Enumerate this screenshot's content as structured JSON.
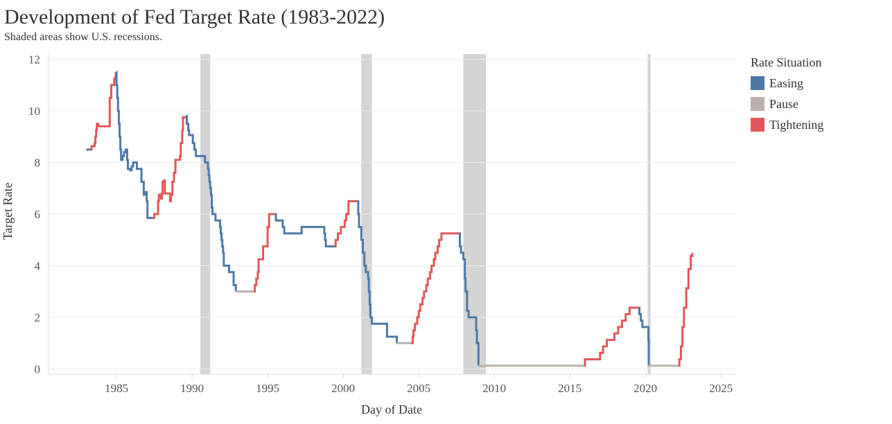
{
  "chart_data": {
    "type": "line",
    "title": "Development of Fed Target Rate (1983-2022)",
    "subtitle": "Shaded areas show U.S. recessions.",
    "xlabel": "Day of Date",
    "ylabel": "Target Rate",
    "xlim": [
      1980.5,
      2026
    ],
    "ylim": [
      -0.2,
      12.2
    ],
    "xticks": [
      1985,
      1990,
      1995,
      2000,
      2005,
      2010,
      2015,
      2020,
      2025
    ],
    "yticks": [
      0,
      2,
      4,
      6,
      8,
      10,
      12
    ],
    "grid": true,
    "legend": {
      "title": "Rate Situation",
      "position": "right",
      "items": [
        {
          "name": "Easing",
          "color": "#4e79a7"
        },
        {
          "name": "Pause",
          "color": "#bab0ac"
        },
        {
          "name": "Tightening",
          "color": "#e15759"
        }
      ]
    },
    "recessions": [
      [
        1990.55,
        1991.2
      ],
      [
        2001.2,
        2001.9
      ],
      [
        2007.95,
        2009.45
      ],
      [
        2020.15,
        2020.35
      ]
    ],
    "series": [
      {
        "name": "Easing",
        "color": "#4e79a7",
        "points": [
          [
            1983.0,
            8.5
          ],
          [
            1983.3,
            8.5
          ]
        ]
      },
      {
        "name": "Tightening",
        "color": "#e15759",
        "points": [
          [
            1983.3,
            8.5
          ],
          [
            1983.35,
            8.63
          ],
          [
            1983.55,
            8.75
          ],
          [
            1983.6,
            9.0
          ],
          [
            1983.65,
            9.25
          ],
          [
            1983.7,
            9.5
          ],
          [
            1983.75,
            9.5
          ],
          [
            1983.78,
            9.4
          ],
          [
            1984.5,
            9.4
          ],
          [
            1984.55,
            10.5
          ],
          [
            1984.65,
            11.0
          ],
          [
            1984.85,
            11.25
          ],
          [
            1984.95,
            11.5
          ]
        ]
      },
      {
        "name": "Easing",
        "color": "#4e79a7",
        "points": [
          [
            1984.95,
            11.5
          ],
          [
            1985.0,
            11.0
          ],
          [
            1985.05,
            10.5
          ],
          [
            1985.1,
            10.0
          ],
          [
            1985.15,
            9.5
          ],
          [
            1985.2,
            9.0
          ],
          [
            1985.25,
            8.5
          ],
          [
            1985.3,
            8.1
          ],
          [
            1985.4,
            8.25
          ],
          [
            1985.5,
            8.4
          ],
          [
            1985.6,
            8.5
          ],
          [
            1985.7,
            8.1
          ],
          [
            1985.75,
            7.75
          ],
          [
            1985.9,
            7.7
          ],
          [
            1986.0,
            7.85
          ],
          [
            1986.1,
            8.0
          ],
          [
            1986.35,
            7.75
          ],
          [
            1986.6,
            7.75
          ],
          [
            1986.65,
            7.25
          ],
          [
            1986.75,
            7.25
          ],
          [
            1986.8,
            6.75
          ],
          [
            1986.9,
            6.85
          ],
          [
            1987.0,
            6.5
          ],
          [
            1987.05,
            5.85
          ],
          [
            1987.45,
            5.85
          ]
        ]
      },
      {
        "name": "Tightening",
        "color": "#e15759",
        "points": [
          [
            1987.45,
            5.85
          ],
          [
            1987.5,
            6.0
          ],
          [
            1987.7,
            6.0
          ],
          [
            1987.75,
            6.5
          ],
          [
            1987.8,
            6.75
          ],
          [
            1987.95,
            6.6
          ],
          [
            1988.0,
            6.8
          ],
          [
            1988.05,
            7.25
          ],
          [
            1988.15,
            7.3
          ],
          [
            1988.2,
            6.8
          ],
          [
            1988.5,
            6.8
          ],
          [
            1988.55,
            6.5
          ],
          [
            1988.6,
            6.75
          ],
          [
            1988.7,
            7.25
          ],
          [
            1988.8,
            7.6
          ],
          [
            1988.9,
            8.1
          ],
          [
            1989.2,
            8.25
          ],
          [
            1989.25,
            8.75
          ],
          [
            1989.35,
            9.25
          ],
          [
            1989.4,
            9.75
          ],
          [
            1989.6,
            9.8
          ]
        ]
      },
      {
        "name": "Easing",
        "color": "#4e79a7",
        "points": [
          [
            1989.6,
            9.8
          ],
          [
            1989.65,
            9.5
          ],
          [
            1989.75,
            9.25
          ],
          [
            1989.8,
            9.06
          ],
          [
            1990.0,
            9.06
          ],
          [
            1990.05,
            8.75
          ],
          [
            1990.15,
            8.5
          ],
          [
            1990.25,
            8.25
          ],
          [
            1990.8,
            8.25
          ],
          [
            1990.85,
            8.0
          ],
          [
            1991.0,
            8.0
          ],
          [
            1991.05,
            7.75
          ],
          [
            1991.1,
            7.5
          ],
          [
            1991.15,
            7.25
          ],
          [
            1991.2,
            7.0
          ],
          [
            1991.25,
            6.75
          ],
          [
            1991.3,
            6.25
          ],
          [
            1991.35,
            6.0
          ],
          [
            1991.5,
            6.0
          ],
          [
            1991.55,
            5.75
          ],
          [
            1991.8,
            5.75
          ],
          [
            1991.85,
            5.5
          ],
          [
            1991.9,
            5.25
          ],
          [
            1991.95,
            5.0
          ],
          [
            1992.0,
            4.75
          ],
          [
            1992.05,
            4.5
          ],
          [
            1992.1,
            4.0
          ],
          [
            1992.4,
            4.0
          ],
          [
            1992.45,
            3.75
          ],
          [
            1992.7,
            3.75
          ],
          [
            1992.75,
            3.25
          ],
          [
            1992.85,
            3.25
          ],
          [
            1992.9,
            3.0
          ]
        ]
      },
      {
        "name": "Pause",
        "color": "#bab0ac",
        "points": [
          [
            1992.9,
            3.0
          ],
          [
            1994.1,
            3.0
          ]
        ]
      },
      {
        "name": "Tightening",
        "color": "#e15759",
        "points": [
          [
            1994.1,
            3.0
          ],
          [
            1994.15,
            3.25
          ],
          [
            1994.25,
            3.5
          ],
          [
            1994.35,
            3.75
          ],
          [
            1994.4,
            4.25
          ],
          [
            1994.65,
            4.25
          ],
          [
            1994.7,
            4.75
          ],
          [
            1994.95,
            4.75
          ],
          [
            1995.0,
            5.5
          ],
          [
            1995.1,
            6.0
          ],
          [
            1995.5,
            6.0
          ]
        ]
      },
      {
        "name": "Easing",
        "color": "#4e79a7",
        "points": [
          [
            1995.5,
            6.0
          ],
          [
            1995.55,
            5.75
          ],
          [
            1995.95,
            5.75
          ],
          [
            1996.0,
            5.5
          ],
          [
            1996.1,
            5.25
          ],
          [
            1997.2,
            5.25
          ],
          [
            1997.25,
            5.5
          ],
          [
            1998.7,
            5.5
          ],
          [
            1998.75,
            5.25
          ],
          [
            1998.8,
            5.0
          ],
          [
            1998.85,
            4.75
          ],
          [
            1999.45,
            4.75
          ]
        ]
      },
      {
        "name": "Tightening",
        "color": "#e15759",
        "points": [
          [
            1999.45,
            4.75
          ],
          [
            1999.5,
            5.0
          ],
          [
            1999.65,
            5.25
          ],
          [
            1999.85,
            5.5
          ],
          [
            2000.1,
            5.75
          ],
          [
            2000.2,
            6.0
          ],
          [
            2000.35,
            6.5
          ],
          [
            2000.95,
            6.5
          ]
        ]
      },
      {
        "name": "Easing",
        "color": "#4e79a7",
        "points": [
          [
            2000.95,
            6.5
          ],
          [
            2001.0,
            6.0
          ],
          [
            2001.05,
            5.5
          ],
          [
            2001.2,
            5.0
          ],
          [
            2001.3,
            4.5
          ],
          [
            2001.4,
            4.0
          ],
          [
            2001.5,
            3.75
          ],
          [
            2001.65,
            3.5
          ],
          [
            2001.7,
            3.0
          ],
          [
            2001.75,
            2.5
          ],
          [
            2001.8,
            2.0
          ],
          [
            2001.9,
            1.75
          ],
          [
            2002.85,
            1.75
          ],
          [
            2002.9,
            1.25
          ],
          [
            2003.5,
            1.25
          ],
          [
            2003.55,
            1.0
          ]
        ]
      },
      {
        "name": "Pause",
        "color": "#bab0ac",
        "points": [
          [
            2003.55,
            1.0
          ],
          [
            2004.5,
            1.0
          ]
        ]
      },
      {
        "name": "Tightening",
        "color": "#e15759",
        "points": [
          [
            2004.5,
            1.0
          ],
          [
            2004.6,
            1.25
          ],
          [
            2004.65,
            1.5
          ],
          [
            2004.75,
            1.75
          ],
          [
            2004.9,
            2.0
          ],
          [
            2005.0,
            2.25
          ],
          [
            2005.1,
            2.5
          ],
          [
            2005.25,
            2.75
          ],
          [
            2005.35,
            3.0
          ],
          [
            2005.5,
            3.25
          ],
          [
            2005.6,
            3.5
          ],
          [
            2005.75,
            3.75
          ],
          [
            2005.85,
            4.0
          ],
          [
            2006.0,
            4.25
          ],
          [
            2006.1,
            4.5
          ],
          [
            2006.25,
            4.75
          ],
          [
            2006.35,
            5.0
          ],
          [
            2006.5,
            5.25
          ],
          [
            2007.7,
            5.25
          ]
        ]
      },
      {
        "name": "Easing",
        "color": "#4e79a7",
        "points": [
          [
            2007.7,
            5.25
          ],
          [
            2007.72,
            4.75
          ],
          [
            2007.8,
            4.5
          ],
          [
            2007.95,
            4.25
          ],
          [
            2008.05,
            3.5
          ],
          [
            2008.1,
            3.0
          ],
          [
            2008.2,
            2.25
          ],
          [
            2008.3,
            2.0
          ],
          [
            2008.75,
            2.0
          ],
          [
            2008.8,
            1.5
          ],
          [
            2008.85,
            1.0
          ],
          [
            2008.95,
            0.125
          ]
        ]
      },
      {
        "name": "Pause",
        "color": "#bab0ac",
        "points": [
          [
            2008.95,
            0.125
          ],
          [
            2015.95,
            0.125
          ]
        ]
      },
      {
        "name": "Tightening",
        "color": "#e15759",
        "points": [
          [
            2015.95,
            0.125
          ],
          [
            2016.0,
            0.375
          ],
          [
            2016.95,
            0.375
          ],
          [
            2017.0,
            0.625
          ],
          [
            2017.2,
            0.875
          ],
          [
            2017.45,
            1.125
          ],
          [
            2017.95,
            1.375
          ],
          [
            2018.2,
            1.625
          ],
          [
            2018.45,
            1.875
          ],
          [
            2018.7,
            2.125
          ],
          [
            2018.95,
            2.375
          ],
          [
            2019.55,
            2.375
          ]
        ]
      },
      {
        "name": "Easing",
        "color": "#4e79a7",
        "points": [
          [
            2019.55,
            2.375
          ],
          [
            2019.6,
            2.125
          ],
          [
            2019.7,
            1.875
          ],
          [
            2019.8,
            1.625
          ],
          [
            2020.15,
            1.625
          ],
          [
            2020.2,
            1.125
          ],
          [
            2020.22,
            0.125
          ]
        ]
      },
      {
        "name": "Pause",
        "color": "#bab0ac",
        "points": [
          [
            2020.22,
            0.125
          ],
          [
            2022.2,
            0.125
          ]
        ]
      },
      {
        "name": "Tightening",
        "color": "#e15759",
        "points": [
          [
            2022.2,
            0.125
          ],
          [
            2022.25,
            0.375
          ],
          [
            2022.35,
            0.875
          ],
          [
            2022.45,
            1.625
          ],
          [
            2022.55,
            2.375
          ],
          [
            2022.7,
            3.125
          ],
          [
            2022.85,
            3.875
          ],
          [
            2023.0,
            4.375
          ],
          [
            2023.1,
            4.5
          ]
        ]
      }
    ]
  }
}
